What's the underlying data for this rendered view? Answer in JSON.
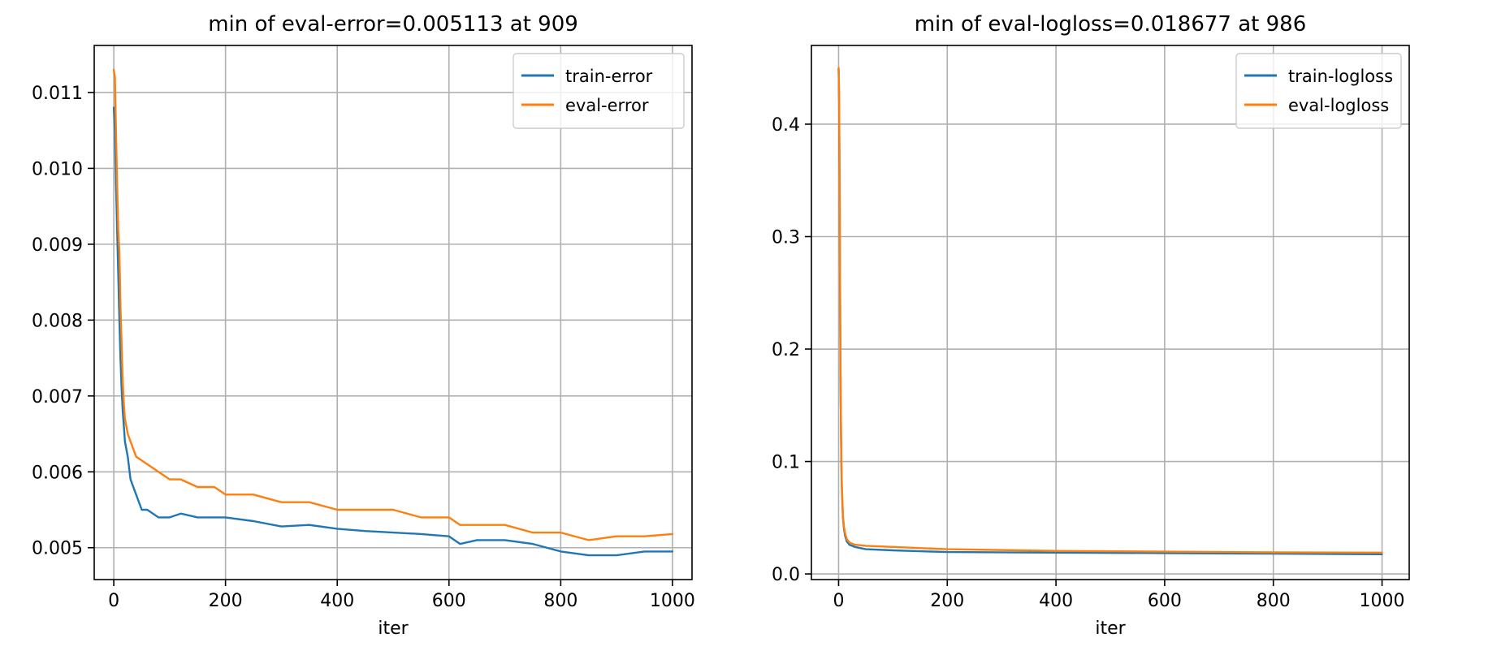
{
  "figure": {
    "colors": {
      "series_1": "#1f77b4",
      "series_2": "#ff7f0e"
    }
  },
  "chart_data": [
    {
      "type": "line",
      "title": "min of eval-error=0.005113 at 909",
      "xlabel": "iter",
      "ylabel": "",
      "xlim": [
        -35,
        1035
      ],
      "ylim": [
        0.00458,
        0.01162
      ],
      "x_ticks": [
        0,
        200,
        400,
        600,
        800,
        1000
      ],
      "x_tick_labels": [
        "0",
        "200",
        "400",
        "600",
        "800",
        "1000"
      ],
      "y_ticks": [
        0.005,
        0.006,
        0.007,
        0.008,
        0.009,
        0.01,
        0.011
      ],
      "y_tick_labels": [
        "0.005",
        "0.006",
        "0.007",
        "0.008",
        "0.009",
        "0.010",
        "0.011"
      ],
      "grid": true,
      "legend_position": "top-right",
      "series": [
        {
          "name": "train-error",
          "color": "#1f77b4",
          "x": [
            0,
            2,
            4,
            6,
            8,
            10,
            12,
            14,
            16,
            18,
            20,
            25,
            30,
            40,
            50,
            60,
            80,
            100,
            120,
            150,
            180,
            200,
            250,
            300,
            350,
            400,
            450,
            500,
            550,
            600,
            620,
            650,
            700,
            750,
            800,
            850,
            900,
            950,
            1000
          ],
          "y": [
            0.0108,
            0.0105,
            0.0098,
            0.0092,
            0.0086,
            0.008,
            0.0075,
            0.0071,
            0.0068,
            0.0066,
            0.0064,
            0.0062,
            0.0059,
            0.0057,
            0.0055,
            0.0055,
            0.0054,
            0.0054,
            0.00545,
            0.0054,
            0.0054,
            0.0054,
            0.00535,
            0.00528,
            0.0053,
            0.00525,
            0.00522,
            0.0052,
            0.00518,
            0.00515,
            0.00505,
            0.0051,
            0.0051,
            0.00505,
            0.00495,
            0.0049,
            0.0049,
            0.00495,
            0.00495
          ]
        },
        {
          "name": "eval-error",
          "color": "#ff7f0e",
          "x": [
            0,
            2,
            4,
            6,
            8,
            10,
            12,
            14,
            16,
            18,
            20,
            25,
            30,
            40,
            50,
            60,
            80,
            100,
            120,
            150,
            180,
            200,
            250,
            300,
            350,
            400,
            450,
            500,
            550,
            600,
            620,
            650,
            700,
            750,
            800,
            850,
            900,
            950,
            1000
          ],
          "y": [
            0.0113,
            0.0112,
            0.0105,
            0.0098,
            0.0092,
            0.0089,
            0.0082,
            0.0077,
            0.0072,
            0.0069,
            0.0067,
            0.0065,
            0.0064,
            0.0062,
            0.00615,
            0.0061,
            0.006,
            0.0059,
            0.0059,
            0.0058,
            0.0058,
            0.0057,
            0.0057,
            0.0056,
            0.0056,
            0.0055,
            0.0055,
            0.0055,
            0.0054,
            0.0054,
            0.0053,
            0.0053,
            0.0053,
            0.0052,
            0.0052,
            0.0051,
            0.00515,
            0.00515,
            0.00518
          ]
        }
      ]
    },
    {
      "type": "line",
      "title": "min of eval-logloss=0.018677 at 986",
      "xlabel": "iter",
      "ylabel": "",
      "xlim": [
        -50,
        1050
      ],
      "ylim": [
        -0.005,
        0.47
      ],
      "x_ticks": [
        0,
        200,
        400,
        600,
        800,
        1000
      ],
      "x_tick_labels": [
        "0",
        "200",
        "400",
        "600",
        "800",
        "1000"
      ],
      "y_ticks": [
        0.0,
        0.1,
        0.2,
        0.3,
        0.4
      ],
      "y_tick_labels": [
        "0.0",
        "0.1",
        "0.2",
        "0.3",
        "0.4"
      ],
      "grid": true,
      "legend_position": "top-right",
      "series": [
        {
          "name": "train-logloss",
          "color": "#1f77b4",
          "x": [
            0,
            1,
            2,
            3,
            4,
            5,
            6,
            8,
            10,
            12,
            15,
            20,
            30,
            50,
            100,
            200,
            400,
            600,
            800,
            1000
          ],
          "y": [
            0.449,
            0.42,
            0.33,
            0.22,
            0.15,
            0.1,
            0.075,
            0.05,
            0.04,
            0.034,
            0.029,
            0.026,
            0.024,
            0.022,
            0.021,
            0.0195,
            0.019,
            0.0185,
            0.018,
            0.0175
          ]
        },
        {
          "name": "eval-logloss",
          "color": "#ff7f0e",
          "x": [
            0,
            1,
            2,
            3,
            4,
            5,
            6,
            8,
            10,
            12,
            15,
            20,
            30,
            50,
            100,
            200,
            400,
            600,
            800,
            1000
          ],
          "y": [
            0.45,
            0.43,
            0.34,
            0.23,
            0.155,
            0.105,
            0.078,
            0.052,
            0.042,
            0.036,
            0.031,
            0.028,
            0.026,
            0.025,
            0.024,
            0.022,
            0.0205,
            0.0198,
            0.0192,
            0.019
          ]
        }
      ]
    }
  ]
}
